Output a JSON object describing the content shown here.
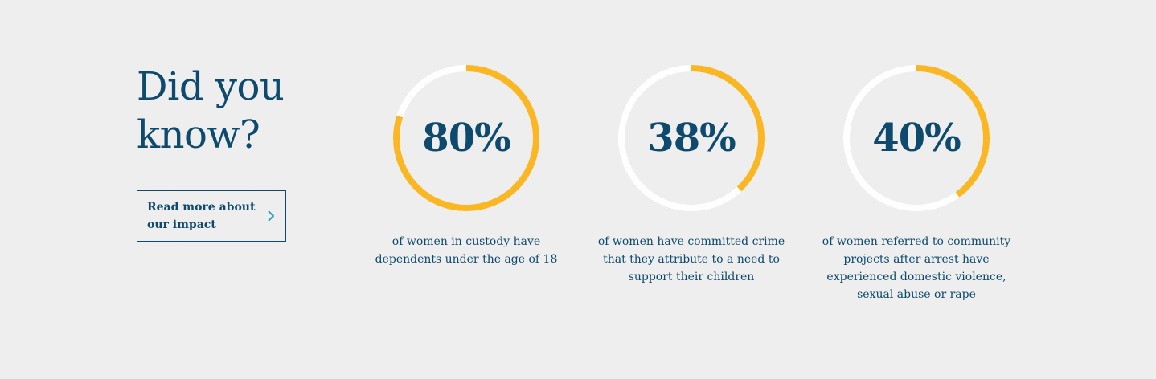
{
  "intro": {
    "heading_line1": "Did you",
    "heading_line2": "know?",
    "cta_label": "Read more about our impact"
  },
  "colors": {
    "background": "#eeeeee",
    "text": "#0d4a6e",
    "ring_track": "#ffffff",
    "ring_fill": "#fbb723"
  },
  "stats": [
    {
      "value_label": "80%",
      "percent": 80,
      "description": "of women in custody have dependents under the age of 18"
    },
    {
      "value_label": "38%",
      "percent": 38,
      "description": "of women have committed crime that they attribute to a need to support their children"
    },
    {
      "value_label": "40%",
      "percent": 40,
      "description": "of women referred to community projects after arrest have experienced domestic violence, sexual abuse or rape"
    }
  ]
}
